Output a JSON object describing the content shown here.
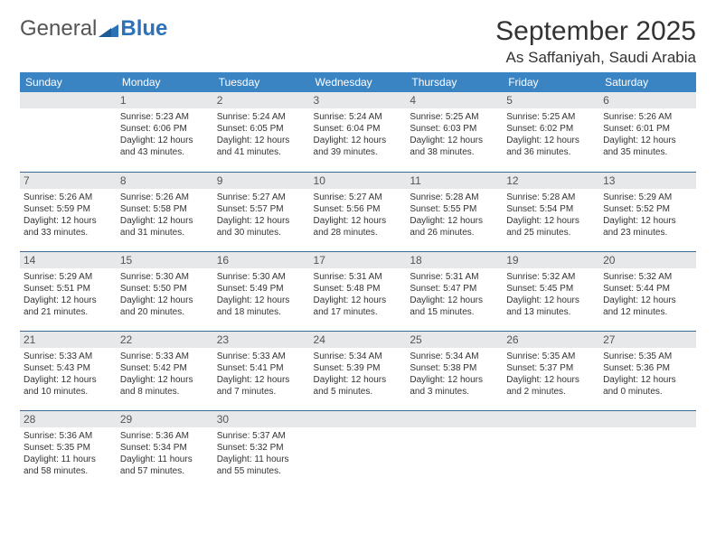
{
  "logo": {
    "general": "General",
    "blue": "Blue"
  },
  "header": {
    "month_year": "September 2025",
    "location": "As Saffaniyah, Saudi Arabia"
  },
  "colors": {
    "header_bg": "#3b84c4",
    "header_text": "#ffffff",
    "daybar_bg": "#e7e8e9",
    "border": "#3b6a94",
    "logo_blue": "#2b72b8",
    "text": "#333333"
  },
  "weekdays": [
    "Sunday",
    "Monday",
    "Tuesday",
    "Wednesday",
    "Thursday",
    "Friday",
    "Saturday"
  ],
  "weeks": [
    [
      {
        "day": "",
        "sunrise": "",
        "sunset": "",
        "daylight": ""
      },
      {
        "day": "1",
        "sunrise": "Sunrise: 5:23 AM",
        "sunset": "Sunset: 6:06 PM",
        "daylight": "Daylight: 12 hours and 43 minutes."
      },
      {
        "day": "2",
        "sunrise": "Sunrise: 5:24 AM",
        "sunset": "Sunset: 6:05 PM",
        "daylight": "Daylight: 12 hours and 41 minutes."
      },
      {
        "day": "3",
        "sunrise": "Sunrise: 5:24 AM",
        "sunset": "Sunset: 6:04 PM",
        "daylight": "Daylight: 12 hours and 39 minutes."
      },
      {
        "day": "4",
        "sunrise": "Sunrise: 5:25 AM",
        "sunset": "Sunset: 6:03 PM",
        "daylight": "Daylight: 12 hours and 38 minutes."
      },
      {
        "day": "5",
        "sunrise": "Sunrise: 5:25 AM",
        "sunset": "Sunset: 6:02 PM",
        "daylight": "Daylight: 12 hours and 36 minutes."
      },
      {
        "day": "6",
        "sunrise": "Sunrise: 5:26 AM",
        "sunset": "Sunset: 6:01 PM",
        "daylight": "Daylight: 12 hours and 35 minutes."
      }
    ],
    [
      {
        "day": "7",
        "sunrise": "Sunrise: 5:26 AM",
        "sunset": "Sunset: 5:59 PM",
        "daylight": "Daylight: 12 hours and 33 minutes."
      },
      {
        "day": "8",
        "sunrise": "Sunrise: 5:26 AM",
        "sunset": "Sunset: 5:58 PM",
        "daylight": "Daylight: 12 hours and 31 minutes."
      },
      {
        "day": "9",
        "sunrise": "Sunrise: 5:27 AM",
        "sunset": "Sunset: 5:57 PM",
        "daylight": "Daylight: 12 hours and 30 minutes."
      },
      {
        "day": "10",
        "sunrise": "Sunrise: 5:27 AM",
        "sunset": "Sunset: 5:56 PM",
        "daylight": "Daylight: 12 hours and 28 minutes."
      },
      {
        "day": "11",
        "sunrise": "Sunrise: 5:28 AM",
        "sunset": "Sunset: 5:55 PM",
        "daylight": "Daylight: 12 hours and 26 minutes."
      },
      {
        "day": "12",
        "sunrise": "Sunrise: 5:28 AM",
        "sunset": "Sunset: 5:54 PM",
        "daylight": "Daylight: 12 hours and 25 minutes."
      },
      {
        "day": "13",
        "sunrise": "Sunrise: 5:29 AM",
        "sunset": "Sunset: 5:52 PM",
        "daylight": "Daylight: 12 hours and 23 minutes."
      }
    ],
    [
      {
        "day": "14",
        "sunrise": "Sunrise: 5:29 AM",
        "sunset": "Sunset: 5:51 PM",
        "daylight": "Daylight: 12 hours and 21 minutes."
      },
      {
        "day": "15",
        "sunrise": "Sunrise: 5:30 AM",
        "sunset": "Sunset: 5:50 PM",
        "daylight": "Daylight: 12 hours and 20 minutes."
      },
      {
        "day": "16",
        "sunrise": "Sunrise: 5:30 AM",
        "sunset": "Sunset: 5:49 PM",
        "daylight": "Daylight: 12 hours and 18 minutes."
      },
      {
        "day": "17",
        "sunrise": "Sunrise: 5:31 AM",
        "sunset": "Sunset: 5:48 PM",
        "daylight": "Daylight: 12 hours and 17 minutes."
      },
      {
        "day": "18",
        "sunrise": "Sunrise: 5:31 AM",
        "sunset": "Sunset: 5:47 PM",
        "daylight": "Daylight: 12 hours and 15 minutes."
      },
      {
        "day": "19",
        "sunrise": "Sunrise: 5:32 AM",
        "sunset": "Sunset: 5:45 PM",
        "daylight": "Daylight: 12 hours and 13 minutes."
      },
      {
        "day": "20",
        "sunrise": "Sunrise: 5:32 AM",
        "sunset": "Sunset: 5:44 PM",
        "daylight": "Daylight: 12 hours and 12 minutes."
      }
    ],
    [
      {
        "day": "21",
        "sunrise": "Sunrise: 5:33 AM",
        "sunset": "Sunset: 5:43 PM",
        "daylight": "Daylight: 12 hours and 10 minutes."
      },
      {
        "day": "22",
        "sunrise": "Sunrise: 5:33 AM",
        "sunset": "Sunset: 5:42 PM",
        "daylight": "Daylight: 12 hours and 8 minutes."
      },
      {
        "day": "23",
        "sunrise": "Sunrise: 5:33 AM",
        "sunset": "Sunset: 5:41 PM",
        "daylight": "Daylight: 12 hours and 7 minutes."
      },
      {
        "day": "24",
        "sunrise": "Sunrise: 5:34 AM",
        "sunset": "Sunset: 5:39 PM",
        "daylight": "Daylight: 12 hours and 5 minutes."
      },
      {
        "day": "25",
        "sunrise": "Sunrise: 5:34 AM",
        "sunset": "Sunset: 5:38 PM",
        "daylight": "Daylight: 12 hours and 3 minutes."
      },
      {
        "day": "26",
        "sunrise": "Sunrise: 5:35 AM",
        "sunset": "Sunset: 5:37 PM",
        "daylight": "Daylight: 12 hours and 2 minutes."
      },
      {
        "day": "27",
        "sunrise": "Sunrise: 5:35 AM",
        "sunset": "Sunset: 5:36 PM",
        "daylight": "Daylight: 12 hours and 0 minutes."
      }
    ],
    [
      {
        "day": "28",
        "sunrise": "Sunrise: 5:36 AM",
        "sunset": "Sunset: 5:35 PM",
        "daylight": "Daylight: 11 hours and 58 minutes."
      },
      {
        "day": "29",
        "sunrise": "Sunrise: 5:36 AM",
        "sunset": "Sunset: 5:34 PM",
        "daylight": "Daylight: 11 hours and 57 minutes."
      },
      {
        "day": "30",
        "sunrise": "Sunrise: 5:37 AM",
        "sunset": "Sunset: 5:32 PM",
        "daylight": "Daylight: 11 hours and 55 minutes."
      },
      {
        "day": "",
        "sunrise": "",
        "sunset": "",
        "daylight": ""
      },
      {
        "day": "",
        "sunrise": "",
        "sunset": "",
        "daylight": ""
      },
      {
        "day": "",
        "sunrise": "",
        "sunset": "",
        "daylight": ""
      },
      {
        "day": "",
        "sunrise": "",
        "sunset": "",
        "daylight": ""
      }
    ]
  ]
}
